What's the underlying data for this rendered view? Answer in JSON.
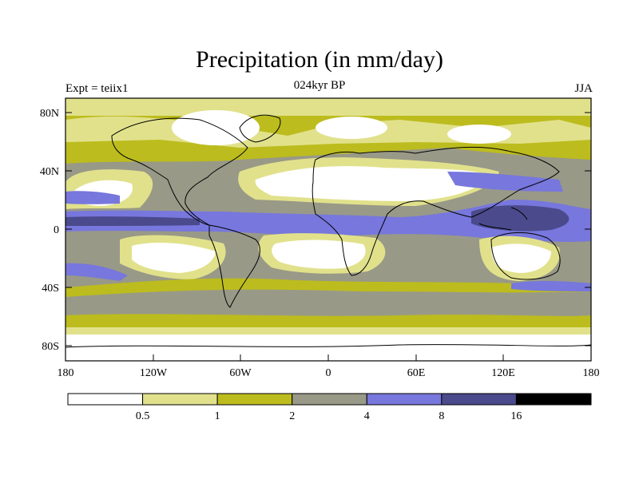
{
  "header": {
    "title": "Precipitation (in mm/day)",
    "left_label": "Expt = teiix1",
    "center_label": "024kyr BP",
    "right_label": "JJA"
  },
  "map": {
    "lat_ticks": [
      "80N",
      "40N",
      "0",
      "40S",
      "80S"
    ],
    "lon_ticks": [
      "180",
      "120W",
      "60W",
      "0",
      "60E",
      "120E",
      "180"
    ]
  },
  "colorbar": {
    "colors": [
      "#ffffff",
      "#e1e18c",
      "#bcbc1e",
      "#999988",
      "#7777dd",
      "#4a4a8c",
      "#000000"
    ],
    "labels": [
      "0.5",
      "1",
      "2",
      "4",
      "8",
      "16"
    ]
  }
}
